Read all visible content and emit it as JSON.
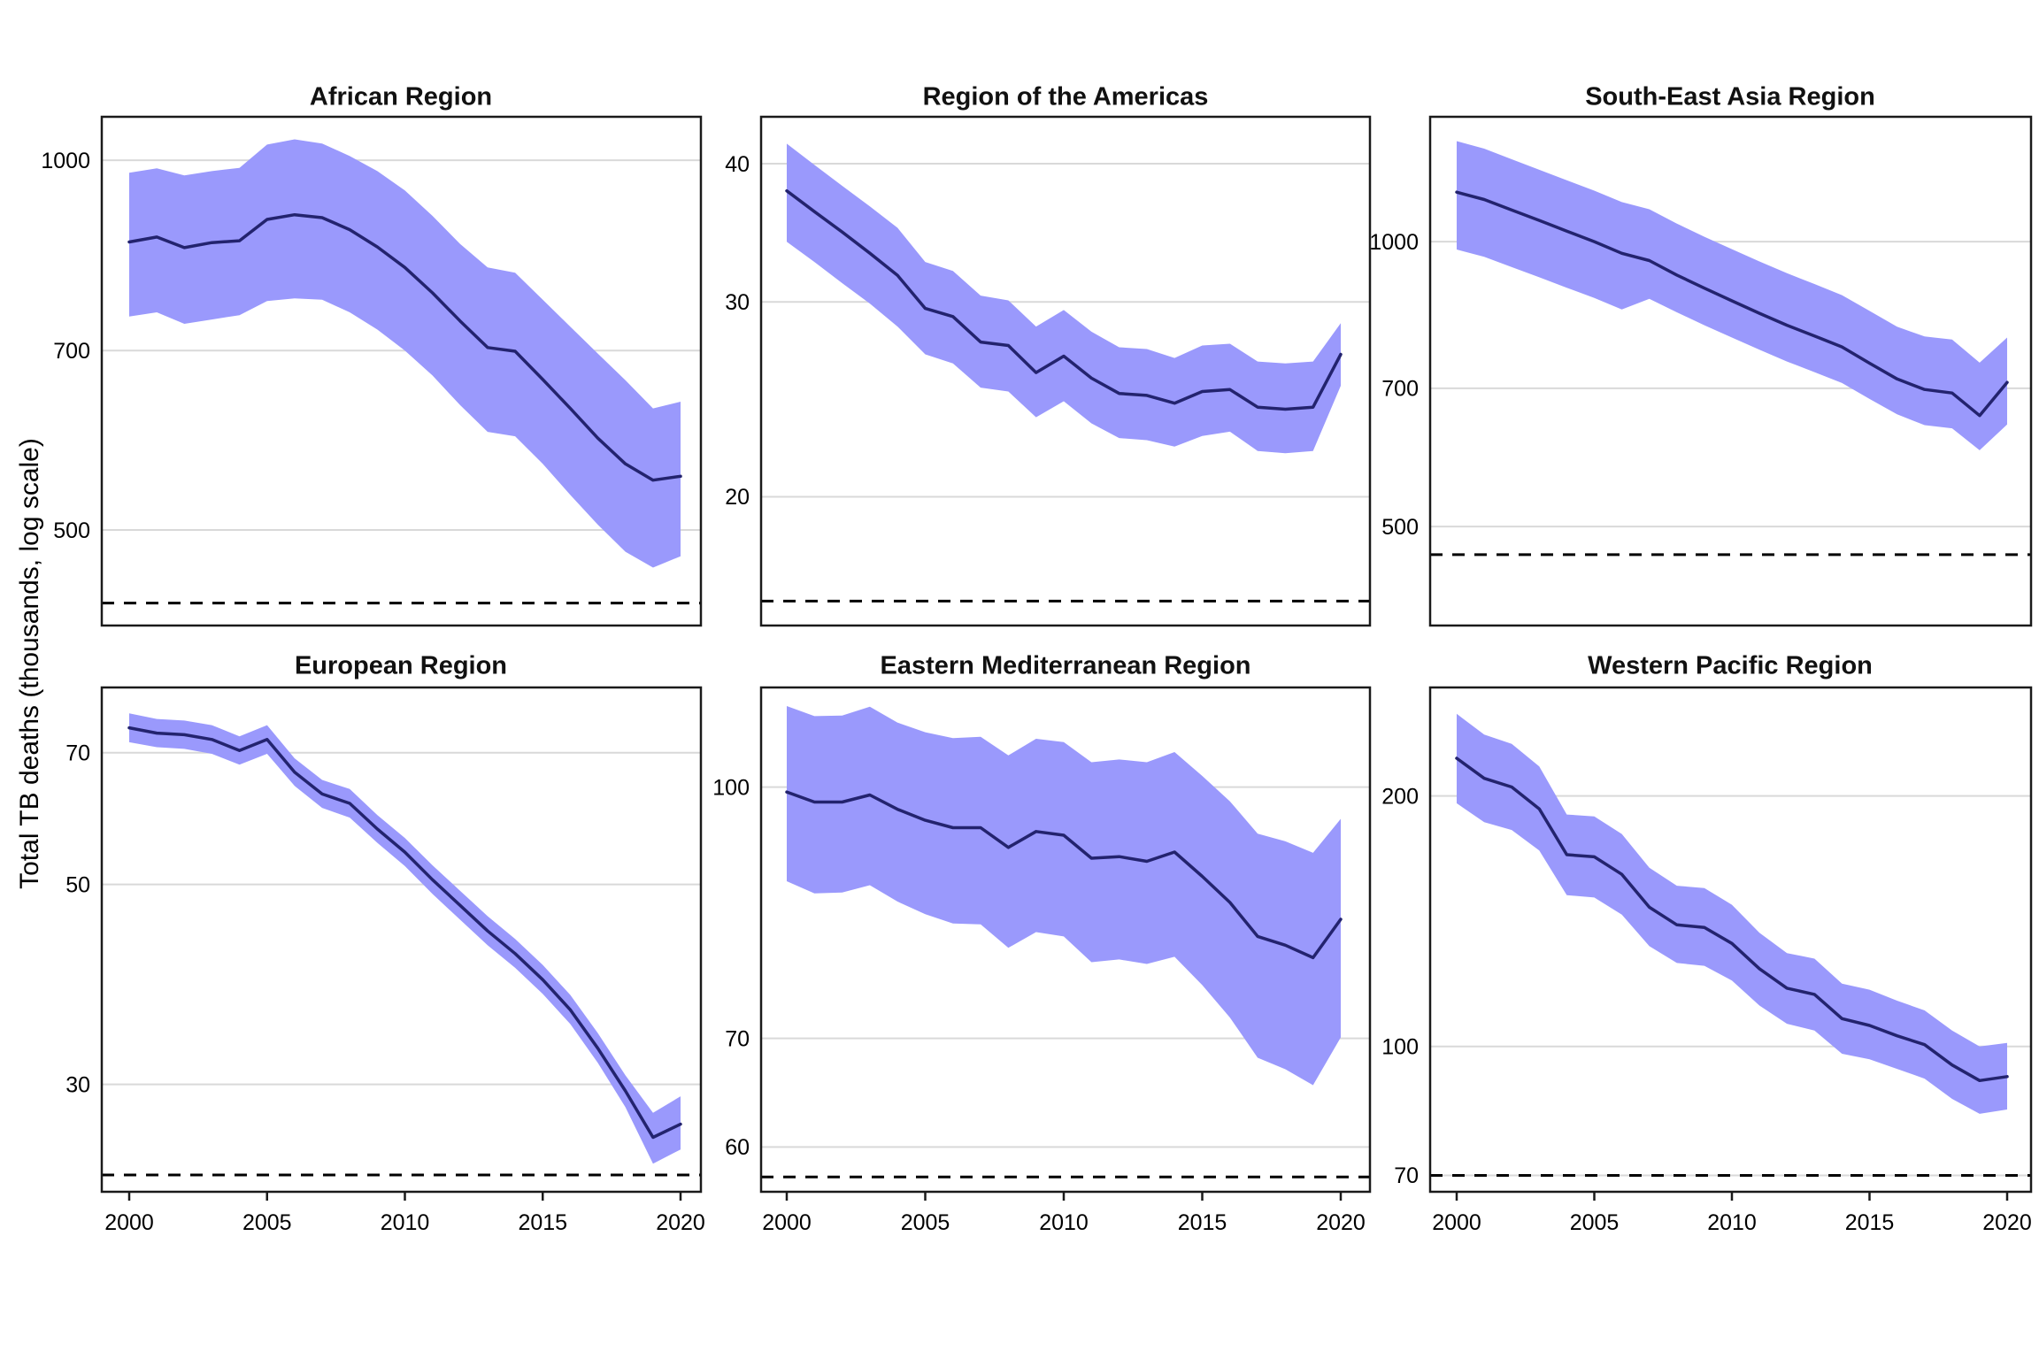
{
  "figure": {
    "ylabel": "Total TB deaths (thousands, log scale)"
  },
  "style": {
    "background": "#ffffff",
    "ribbon_color": "#9a99fc",
    "line_color": "#23236e",
    "grid_color": "#d9d9d9",
    "dashed_color": "#000000",
    "border_color": "#1a1a1a",
    "text_color": "#000000"
  },
  "chart_data": [
    {
      "type": "line",
      "title": "African Region",
      "scale": "log",
      "grid": "horizontal-only",
      "legend": "none",
      "x": [
        2000,
        2001,
        2002,
        2003,
        2004,
        2005,
        2006,
        2007,
        2008,
        2009,
        2010,
        2011,
        2012,
        2013,
        2014,
        2015,
        2016,
        2017,
        2018,
        2019,
        2020
      ],
      "xticks": [
        2000,
        2005,
        2010,
        2015,
        2020
      ],
      "yticks": [
        1000,
        700,
        500
      ],
      "ylim": [
        418,
        1085
      ],
      "dashed_target": 436,
      "series": [
        {
          "name": "central estimate",
          "values": [
            858,
            866,
            849,
            857,
            860,
            895,
            903,
            898,
            878,
            850,
            818,
            780,
            740,
            704,
            699,
            663,
            628,
            594,
            566,
            549,
            553
          ]
        },
        {
          "name": "lower bound",
          "values": [
            746,
            752,
            736,
            742,
            748,
            768,
            772,
            770,
            752,
            728,
            700,
            668,
            632,
            601,
            596,
            566,
            534,
            505,
            480,
            466,
            476
          ]
        },
        {
          "name": "upper bound",
          "values": [
            977,
            985,
            972,
            980,
            986,
            1030,
            1040,
            1032,
            1008,
            980,
            945,
            901,
            855,
            818,
            810,
            770,
            732,
            696,
            662,
            628,
            636
          ]
        }
      ]
    },
    {
      "type": "line",
      "title": "Region of the Americas",
      "scale": "log",
      "grid": "horizontal-only",
      "legend": "none",
      "x": [
        2000,
        2001,
        2002,
        2003,
        2004,
        2005,
        2006,
        2007,
        2008,
        2009,
        2010,
        2011,
        2012,
        2013,
        2014,
        2015,
        2016,
        2017,
        2018,
        2019,
        2020
      ],
      "xticks": [
        2000,
        2005,
        2010,
        2015,
        2020
      ],
      "yticks": [
        40,
        30,
        20
      ],
      "ylim": [
        15.3,
        44.1
      ],
      "dashed_target": 16.1,
      "series": [
        {
          "name": "central estimate",
          "values": [
            37.8,
            36.2,
            34.7,
            33.2,
            31.7,
            29.6,
            29.1,
            27.6,
            27.4,
            25.9,
            26.8,
            25.6,
            24.8,
            24.7,
            24.3,
            24.9,
            25.0,
            24.1,
            24.0,
            24.1,
            26.9
          ]
        },
        {
          "name": "lower bound",
          "values": [
            34.0,
            32.6,
            31.2,
            29.9,
            28.5,
            26.9,
            26.4,
            25.1,
            24.9,
            23.6,
            24.4,
            23.3,
            22.6,
            22.5,
            22.2,
            22.7,
            22.9,
            22.0,
            21.9,
            22.0,
            25.2
          ]
        },
        {
          "name": "upper bound",
          "values": [
            41.7,
            39.9,
            38.2,
            36.6,
            35.0,
            32.6,
            32.0,
            30.4,
            30.1,
            28.5,
            29.5,
            28.2,
            27.3,
            27.2,
            26.7,
            27.4,
            27.5,
            26.5,
            26.4,
            26.5,
            28.7
          ]
        }
      ]
    },
    {
      "type": "line",
      "title": "South-East Asia Region",
      "scale": "log",
      "grid": "horizontal-only",
      "legend": "none",
      "x": [
        2000,
        2001,
        2002,
        2003,
        2004,
        2005,
        2006,
        2007,
        2008,
        2009,
        2010,
        2011,
        2012,
        2013,
        2014,
        2015,
        2016,
        2017,
        2018,
        2019,
        2020
      ],
      "xticks": [
        2000,
        2005,
        2010,
        2015,
        2020
      ],
      "yticks": [
        1000,
        700,
        500
      ],
      "ylim": [
        393,
        1355
      ],
      "dashed_target": 467,
      "series": [
        {
          "name": "central estimate",
          "values": [
            1128,
            1108,
            1080,
            1053,
            1026,
            1000,
            972,
            955,
            922,
            893,
            866,
            840,
            816,
            795,
            774,
            744,
            716,
            698,
            692,
            655,
            710
          ]
        },
        {
          "name": "lower bound",
          "values": [
            981,
            964,
            940,
            917,
            894,
            872,
            848,
            870,
            842,
            816,
            792,
            769,
            747,
            728,
            709,
            682,
            657,
            640,
            635,
            602,
            641
          ]
        },
        {
          "name": "upper bound",
          "values": [
            1277,
            1254,
            1222,
            1191,
            1161,
            1132,
            1101,
            1082,
            1045,
            1012,
            982,
            953,
            926,
            902,
            878,
            845,
            813,
            794,
            788,
            745,
            792
          ]
        }
      ]
    },
    {
      "type": "line",
      "title": "European Region",
      "scale": "log",
      "grid": "horizontal-only",
      "legend": "none",
      "x": [
        2000,
        2001,
        2002,
        2003,
        2004,
        2005,
        2006,
        2007,
        2008,
        2009,
        2010,
        2011,
        2012,
        2013,
        2014,
        2015,
        2016,
        2017,
        2018,
        2019,
        2020
      ],
      "xticks": [
        2000,
        2005,
        2010,
        2015,
        2020
      ],
      "yticks": [
        70,
        50,
        30
      ],
      "ylim": [
        22.8,
        82.7
      ],
      "dashed_target": 23.8,
      "series": [
        {
          "name": "central estimate",
          "values": [
            74.6,
            73.6,
            73.3,
            72.4,
            70.4,
            72.4,
            66.6,
            63.0,
            61.5,
            57.6,
            54.3,
            50.6,
            47.4,
            44.4,
            41.9,
            39.2,
            36.3,
            32.9,
            29.5,
            26.2,
            27.1
          ]
        },
        {
          "name": "lower bound",
          "values": [
            71.9,
            71.0,
            70.7,
            69.8,
            67.9,
            69.8,
            64.3,
            60.8,
            59.3,
            55.6,
            52.4,
            48.8,
            45.7,
            42.8,
            40.4,
            37.8,
            35.0,
            31.7,
            28.3,
            24.5,
            25.4
          ]
        },
        {
          "name": "upper bound",
          "values": [
            77.4,
            76.3,
            76.0,
            75.1,
            73.0,
            75.1,
            69.0,
            65.3,
            63.8,
            59.7,
            56.3,
            52.5,
            49.2,
            46.1,
            43.5,
            40.7,
            37.7,
            34.2,
            30.7,
            27.9,
            29.1
          ]
        }
      ]
    },
    {
      "type": "line",
      "title": "Eastern Mediterranean Region",
      "scale": "log",
      "grid": "horizontal-only",
      "legend": "none",
      "x": [
        2000,
        2001,
        2002,
        2003,
        2004,
        2005,
        2006,
        2007,
        2008,
        2009,
        2010,
        2011,
        2012,
        2013,
        2014,
        2015,
        2016,
        2017,
        2018,
        2019,
        2020
      ],
      "xticks": [
        2000,
        2005,
        2010,
        2015,
        2020
      ],
      "yticks": [
        100,
        70,
        60
      ],
      "ylim": [
        56.3,
        115.2
      ],
      "dashed_target": 57.5,
      "series": [
        {
          "name": "central estimate",
          "values": [
            99.3,
            97.9,
            97.9,
            98.9,
            96.9,
            95.4,
            94.4,
            94.4,
            91.8,
            93.9,
            93.4,
            90.4,
            90.6,
            90.0,
            91.2,
            88.1,
            84.9,
            80.9,
            79.9,
            78.5,
            82.9
          ]
        },
        {
          "name": "lower bound",
          "values": [
            87.5,
            86.0,
            86.1,
            87.0,
            85.0,
            83.5,
            82.4,
            82.3,
            79.6,
            81.4,
            80.9,
            78.0,
            78.3,
            77.8,
            78.6,
            75.5,
            72.1,
            68.1,
            67.0,
            65.5,
            70.1
          ]
        },
        {
          "name": "upper bound",
          "values": [
            112.2,
            110.6,
            110.7,
            112.1,
            109.6,
            108.1,
            107.2,
            107.4,
            104.6,
            107.1,
            106.6,
            103.6,
            104.0,
            103.6,
            105.1,
            101.6,
            98.0,
            93.6,
            92.6,
            91.1,
            95.6
          ]
        }
      ]
    },
    {
      "type": "line",
      "title": "Western Pacific Region",
      "scale": "log",
      "grid": "horizontal-only",
      "legend": "none",
      "x": [
        2000,
        2001,
        2002,
        2003,
        2004,
        2005,
        2006,
        2007,
        2008,
        2009,
        2010,
        2011,
        2012,
        2013,
        2014,
        2015,
        2016,
        2017,
        2018,
        2019,
        2020
      ],
      "xticks": [
        2000,
        2005,
        2010,
        2015,
        2020
      ],
      "yticks": [
        200,
        100,
        70
      ],
      "ylim": [
        66.9,
        270
      ],
      "dashed_target": 70,
      "series": [
        {
          "name": "central estimate",
          "values": [
            222,
            210,
            205,
            193,
            170,
            169,
            161,
            147,
            140,
            139,
            133,
            124,
            117.5,
            115.5,
            108,
            106,
            103,
            100.5,
            95,
            91,
            92
          ]
        },
        {
          "name": "lower bound",
          "values": [
            196,
            186,
            182,
            172,
            152,
            151,
            144,
            132,
            126,
            125,
            120,
            112,
            106.5,
            104.5,
            98,
            96.5,
            94,
            91.5,
            86.5,
            83,
            84
          ]
        },
        {
          "name": "upper bound",
          "values": [
            251,
            237,
            231,
            217,
            190,
            189,
            180,
            164,
            156,
            155,
            148,
            137,
            129.5,
            127.5,
            119,
            117,
            113.5,
            110.5,
            104.5,
            100,
            101
          ]
        }
      ]
    }
  ]
}
